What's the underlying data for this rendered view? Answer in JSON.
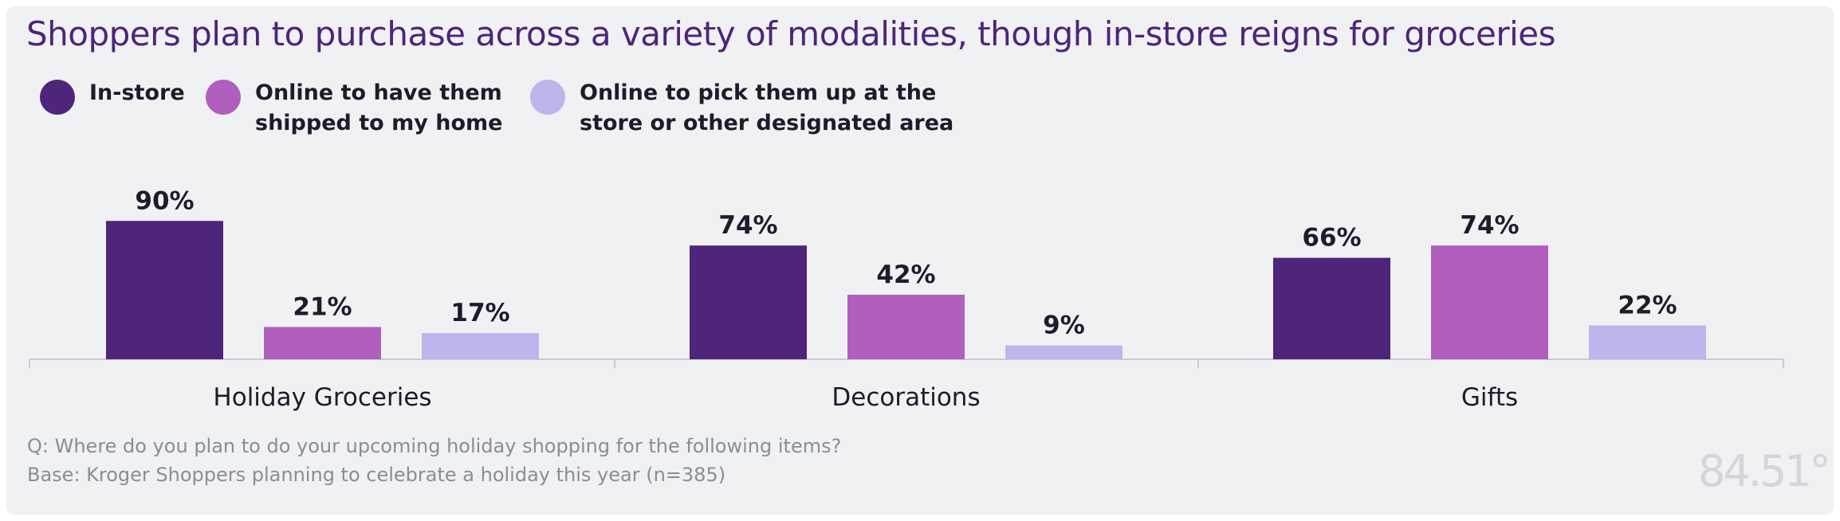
{
  "title": "Shoppers plan to purchase across a variety of modalities, though in-store reigns for groceries",
  "legend": [
    {
      "label": "In-store",
      "color": "#4e257a"
    },
    {
      "label": "Online to have them\nshipped to my home",
      "color": "#b05fbe"
    },
    {
      "label": "Online to pick them up at the\nstore or other designated area",
      "color": "#bdb5eb"
    }
  ],
  "chart_data": {
    "type": "bar",
    "title": "Shoppers plan to purchase across a variety of modalities, though in-store reigns for groceries",
    "categories": [
      "Holiday Groceries",
      "Decorations",
      "Gifts"
    ],
    "series": [
      {
        "name": "In-store",
        "values": [
          90,
          74,
          66
        ],
        "color": "#4e257a"
      },
      {
        "name": "Online to have them shipped to my home",
        "values": [
          21,
          42,
          74
        ],
        "color": "#b05fbe"
      },
      {
        "name": "Online to pick them up at the store or other designated area",
        "values": [
          17,
          9,
          22
        ],
        "color": "#bdb5eb"
      }
    ],
    "value_suffix": "%",
    "ylim": [
      0,
      100
    ],
    "xlabel": "",
    "ylabel": "",
    "grid": false
  },
  "footnotes": {
    "question": "Q: Where do you plan to do your upcoming holiday shopping for the following items?",
    "base": "Base: Kroger Shoppers planning to celebrate a holiday this year (n=385)"
  },
  "brand": "84.51°"
}
